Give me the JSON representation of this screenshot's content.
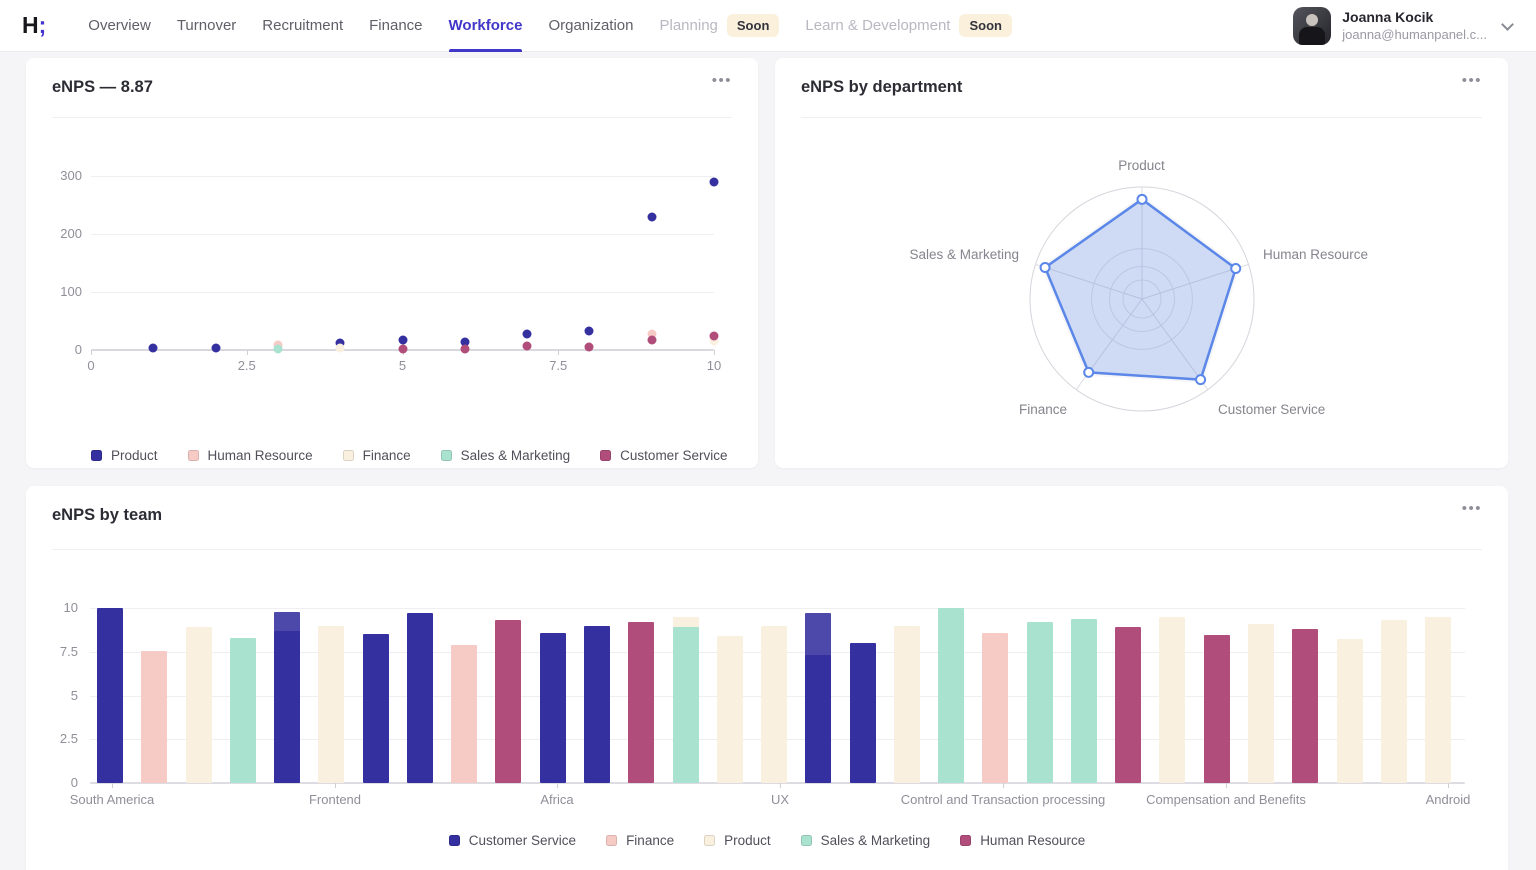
{
  "header": {
    "logo": {
      "text": "H",
      "mark": ";"
    },
    "tabs": [
      {
        "label": "Overview",
        "state": "default"
      },
      {
        "label": "Turnover",
        "state": "default"
      },
      {
        "label": "Recruitment",
        "state": "default"
      },
      {
        "label": "Finance",
        "state": "default"
      },
      {
        "label": "Workforce",
        "state": "active"
      },
      {
        "label": "Organization",
        "state": "default"
      },
      {
        "label": "Planning",
        "state": "disabled",
        "badge": "Soon"
      },
      {
        "label": "Learn & Development",
        "state": "disabled",
        "badge": "Soon"
      }
    ],
    "user": {
      "name": "Joanna Kocik",
      "email": "joanna@humanpanel.c..."
    }
  },
  "ui": {
    "menu_dots": "•••"
  },
  "cards": {
    "enps": {
      "title": "eNPS — 8.87"
    },
    "by_department": {
      "title": "eNPS by department"
    },
    "by_team": {
      "title": "eNPS by team"
    }
  },
  "colors": {
    "accent": "#4137c8",
    "navy": "#34309f",
    "pink": "#f6cbc6",
    "cream": "#faf0df",
    "mint": "#a9e2ce",
    "magenta": "#b04d7a",
    "radar_stroke": "#5b87e8",
    "radar_fill": "rgba(91,135,232,0.25)"
  },
  "chart_data": [
    {
      "id": "enps_scatter",
      "type": "scatter",
      "title": "eNPS — 8.87",
      "xlabel": "",
      "ylabel": "",
      "xlim": [
        0,
        10
      ],
      "ylim": [
        0,
        300
      ],
      "xticks": [
        0,
        2.5,
        5,
        7.5,
        10
      ],
      "yticks": [
        0,
        100,
        200,
        300
      ],
      "grid": true,
      "legend_position": "bottom",
      "series": [
        {
          "name": "Product",
          "color": "#34309f",
          "points": [
            [
              1,
              4
            ],
            [
              2,
              3
            ],
            [
              4,
              12
            ],
            [
              5,
              18
            ],
            [
              6,
              14
            ],
            [
              7,
              28
            ],
            [
              8,
              33
            ],
            [
              9,
              230
            ],
            [
              10,
              290
            ]
          ]
        },
        {
          "name": "Human Resource",
          "color": "#f6cbc6",
          "points": [
            [
              3,
              8
            ],
            [
              9,
              27
            ]
          ]
        },
        {
          "name": "Finance",
          "color": "#faf0df",
          "points": [
            [
              4,
              3
            ],
            [
              10,
              15
            ]
          ]
        },
        {
          "name": "Sales & Marketing",
          "color": "#a9e2ce",
          "points": [
            [
              3,
              2
            ]
          ]
        },
        {
          "name": "Customer Service",
          "color": "#b04d7a",
          "points": [
            [
              5,
              2
            ],
            [
              6,
              2
            ],
            [
              7,
              7
            ],
            [
              8,
              5
            ],
            [
              9,
              18
            ],
            [
              10,
              25
            ]
          ]
        }
      ]
    },
    {
      "id": "enps_radar",
      "type": "radar",
      "title": "eNPS by department",
      "axes": [
        "Product",
        "Human Resource",
        "Customer Service",
        "Finance",
        "Sales & Marketing"
      ],
      "values": [
        8.9,
        8.8,
        8.9,
        8.1,
        9.1
      ],
      "max": 10,
      "rings": 3,
      "stroke": "#5b87e8",
      "fill": "rgba(91,135,232,0.25)"
    },
    {
      "id": "enps_team_bars",
      "type": "bar",
      "title": "eNPS by team",
      "ylim": [
        0,
        10
      ],
      "yticks": [
        0,
        2.5,
        5,
        7.5,
        10
      ],
      "group_labels": [
        "South America",
        "Frontend",
        "Africa",
        "UX",
        "Control and Transaction processing",
        "Compensation and Benefits",
        "Android"
      ],
      "legend": [
        "Customer Service",
        "Finance",
        "Product",
        "Sales & Marketing",
        "Human Resource"
      ],
      "dept_colors": {
        "Customer Service": "#34309f",
        "Finance": "#f6cbc6",
        "Product": "#faf0df",
        "Sales & Marketing": "#a9e2ce",
        "Human Resource": "#b04d7a"
      },
      "bars": [
        {
          "dept": "Customer Service",
          "value": 10.0
        },
        {
          "dept": "Finance",
          "value": 7.55
        },
        {
          "dept": "Product",
          "value": 8.9
        },
        {
          "dept": "Sales & Marketing",
          "value": 8.3
        },
        {
          "dept": "Customer Service",
          "value": 9.8,
          "shadow_value": 8.7
        },
        {
          "dept": "Product",
          "value": 9.0
        },
        {
          "dept": "Customer Service",
          "value": 8.5
        },
        {
          "dept": "Customer Service",
          "value": 9.7
        },
        {
          "dept": "Finance",
          "value": 7.9
        },
        {
          "dept": "Human Resource",
          "value": 9.3
        },
        {
          "dept": "Customer Service",
          "value": 8.55
        },
        {
          "dept": "Customer Service",
          "value": 9.0
        },
        {
          "dept": "Human Resource",
          "value": 9.2
        },
        {
          "dept": "Sales & Marketing",
          "value": 8.9,
          "behind_dept": "Product",
          "behind_value": 9.5
        },
        {
          "dept": "Product",
          "value": 8.4
        },
        {
          "dept": "Product",
          "value": 9.0
        },
        {
          "dept": "Customer Service",
          "value": 9.7,
          "shadow_value": 7.3
        },
        {
          "dept": "Customer Service",
          "value": 8.0
        },
        {
          "dept": "Product",
          "value": 9.0
        },
        {
          "dept": "Sales & Marketing",
          "value": 10.0
        },
        {
          "dept": "Finance",
          "value": 8.55
        },
        {
          "dept": "Sales & Marketing",
          "value": 9.2
        },
        {
          "dept": "Sales & Marketing",
          "value": 9.35
        },
        {
          "dept": "Human Resource",
          "value": 8.9
        },
        {
          "dept": "Product",
          "value": 9.5
        },
        {
          "dept": "Human Resource",
          "value": 8.45
        },
        {
          "dept": "Product",
          "value": 9.1
        },
        {
          "dept": "Human Resource",
          "value": 8.8
        },
        {
          "dept": "Product",
          "value": 8.25
        },
        {
          "dept": "Product",
          "value": 9.3
        },
        {
          "dept": "Product",
          "value": 9.5
        }
      ]
    }
  ]
}
